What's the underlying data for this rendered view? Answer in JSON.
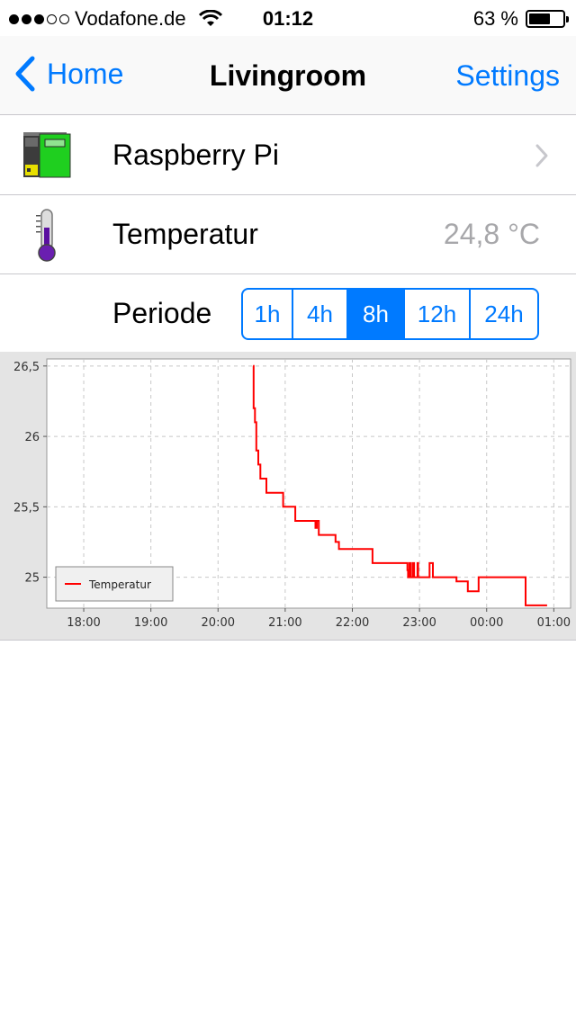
{
  "status_bar": {
    "carrier": "Vodafone.de",
    "time": "01:12",
    "battery_percent": "63 %",
    "battery_level": 0.63,
    "signal_bars_filled": 3,
    "signal_bars_total": 5
  },
  "nav": {
    "back_label": "Home",
    "title": "Livingroom",
    "settings_label": "Settings"
  },
  "rows": {
    "device": {
      "label": "Raspberry Pi",
      "icon": "raspberry-pi-icon"
    },
    "temperature": {
      "label": "Temperatur",
      "value": "24,8 °C",
      "icon": "thermometer-icon"
    },
    "period": {
      "label": "Periode"
    }
  },
  "period_options": [
    "1h",
    "4h",
    "8h",
    "12h",
    "24h"
  ],
  "period_selected": "8h",
  "colors": {
    "accent": "#007aff",
    "series": "#ff0000",
    "chart_bg": "#e4e4e4",
    "plot_bg": "#ffffff"
  },
  "chart_data": {
    "type": "line",
    "title": "",
    "xlabel": "",
    "ylabel": "",
    "x_ticks": [
      "18:00",
      "19:00",
      "20:00",
      "21:00",
      "22:00",
      "23:00",
      "00:00",
      "01:00"
    ],
    "y_ticks": [
      "25",
      "25,5",
      "26",
      "26,5"
    ],
    "y_tick_values": [
      25,
      25.5,
      26,
      26.5
    ],
    "xlim_hours": [
      17.45,
      25.25
    ],
    "ylim": [
      24.78,
      26.55
    ],
    "grid": true,
    "legend_position": "bottom-left",
    "series": [
      {
        "name": "Temperatur",
        "x_hours": [
          20.52,
          20.53,
          20.55,
          20.57,
          20.58,
          20.6,
          20.61,
          20.63,
          20.65,
          20.7,
          20.72,
          20.78,
          20.8,
          20.95,
          20.97,
          21.13,
          21.15,
          21.43,
          21.45,
          21.47,
          21.5,
          21.7,
          21.72,
          21.75,
          21.8,
          22.27,
          22.3,
          22.8,
          22.82,
          22.83,
          22.85,
          22.87,
          22.88,
          22.9,
          22.92,
          22.93,
          22.95,
          22.97,
          22.98,
          23.1,
          23.12,
          23.15,
          23.17,
          23.2,
          23.22,
          23.23,
          23.55,
          23.72,
          23.87,
          23.88,
          24.58,
          24.62,
          24.9
        ],
        "y": [
          26.5,
          26.2,
          26.1,
          25.9,
          25.9,
          25.8,
          25.8,
          25.7,
          25.7,
          25.7,
          25.6,
          25.6,
          25.6,
          25.6,
          25.5,
          25.5,
          25.4,
          25.4,
          25.35,
          25.4,
          25.3,
          25.3,
          25.3,
          25.25,
          25.2,
          25.2,
          25.1,
          25.1,
          25.05,
          25.0,
          25.1,
          25.0,
          25.0,
          25.1,
          25.0,
          25.0,
          25.0,
          25.1,
          25.0,
          25.0,
          25.0,
          25.1,
          25.1,
          25.0,
          25.0,
          25.0,
          24.97,
          24.9,
          24.9,
          25.0,
          24.8,
          24.8,
          24.8
        ]
      }
    ]
  }
}
